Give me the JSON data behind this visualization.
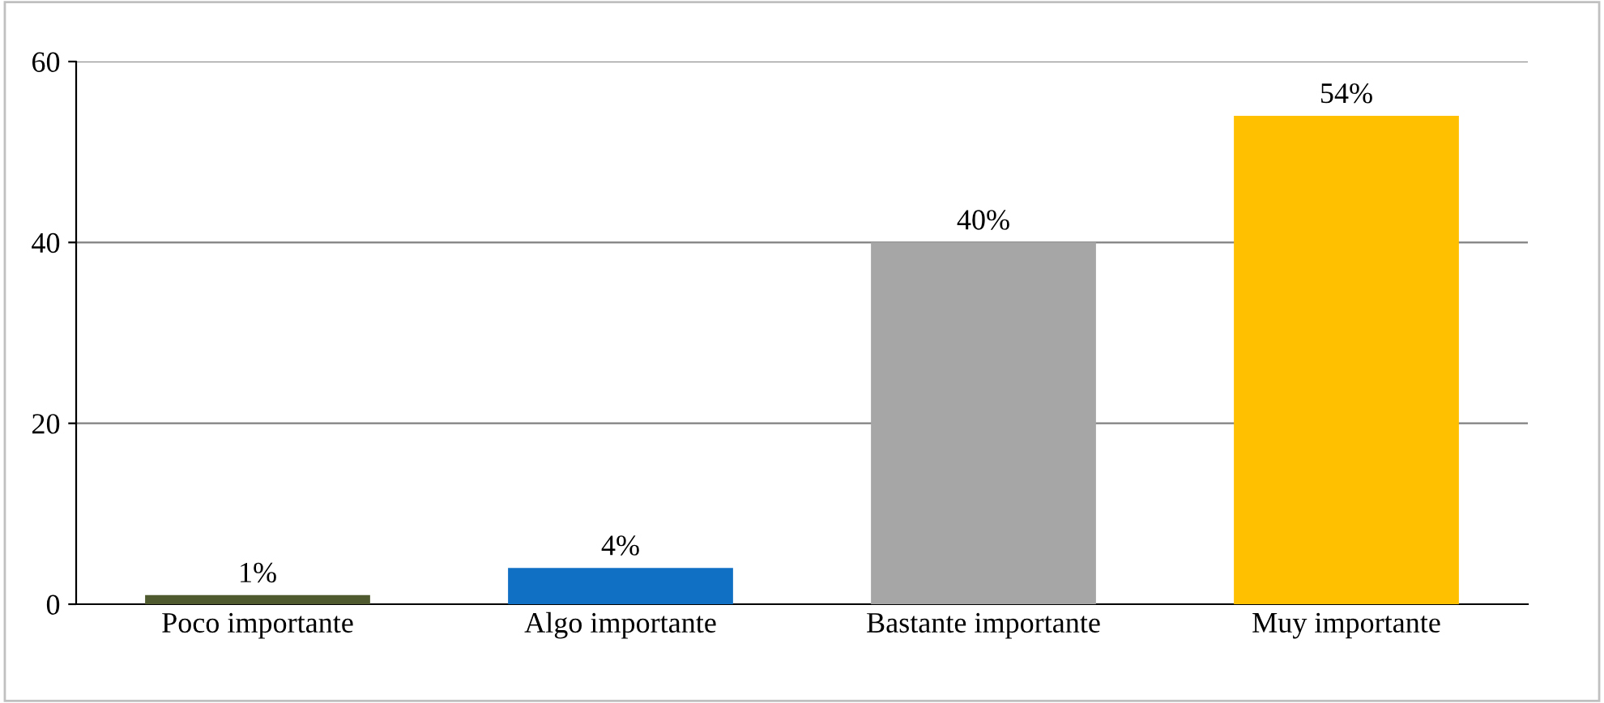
{
  "chart_data": {
    "type": "bar",
    "categories": [
      "Poco importante",
      "Algo importante",
      "Bastante importante",
      "Muy importante"
    ],
    "values": [
      1,
      4,
      40,
      54
    ],
    "colors": [
      "#4f5b2f",
      "#1070c4",
      "#a6a6a6",
      "#ffc000"
    ],
    "value_labels": [
      "1%",
      "4%",
      "40%",
      "54%"
    ],
    "ylim": [
      0,
      60
    ],
    "yticks": [
      0,
      20,
      40,
      60
    ],
    "grid": "y"
  }
}
